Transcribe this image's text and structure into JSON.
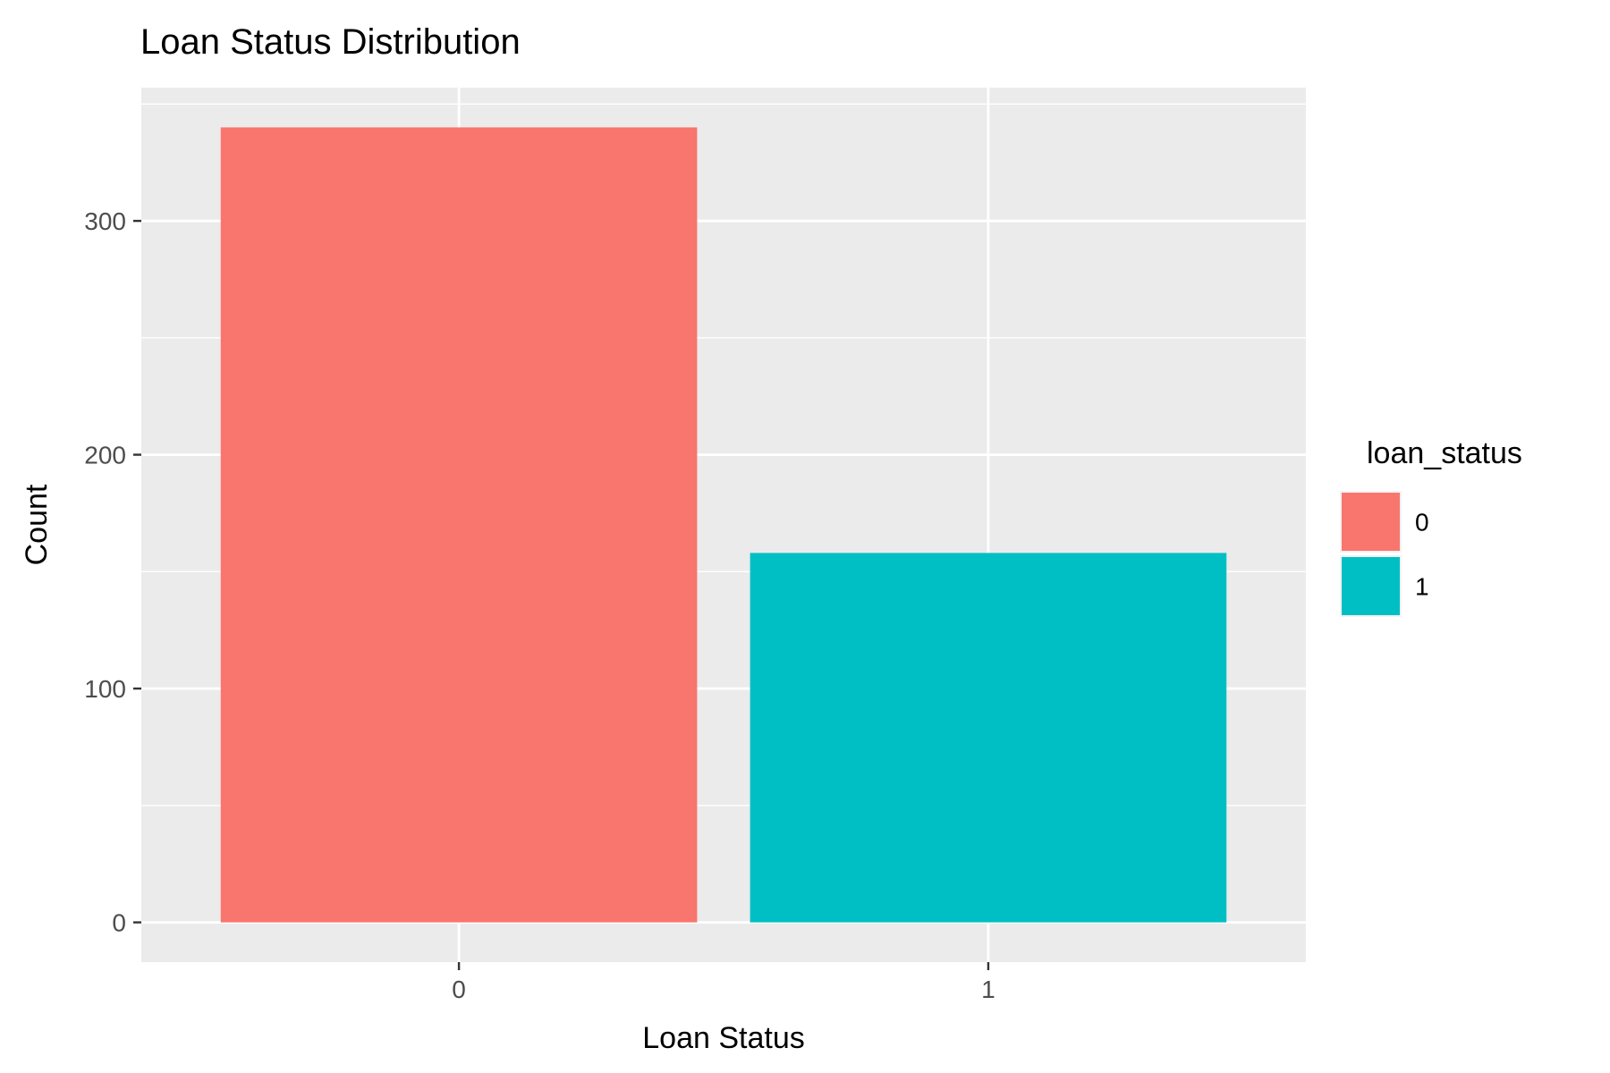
{
  "chart_data": {
    "type": "bar",
    "title": "Loan Status Distribution",
    "xlabel": "Loan Status",
    "ylabel": "Count",
    "categories": [
      "0",
      "1"
    ],
    "values": [
      340,
      158
    ],
    "ylim": [
      -17,
      357
    ],
    "yticks": [
      0,
      100,
      200,
      300
    ],
    "grid": true,
    "legend": {
      "title": "loan_status",
      "placement": "right",
      "entries": [
        {
          "label": "0",
          "color": "#F8766D"
        },
        {
          "label": "1",
          "color": "#00BFC4"
        }
      ]
    },
    "colors": [
      "#F8766D",
      "#00BFC4"
    ],
    "panel_background": "#EBEBEB"
  }
}
